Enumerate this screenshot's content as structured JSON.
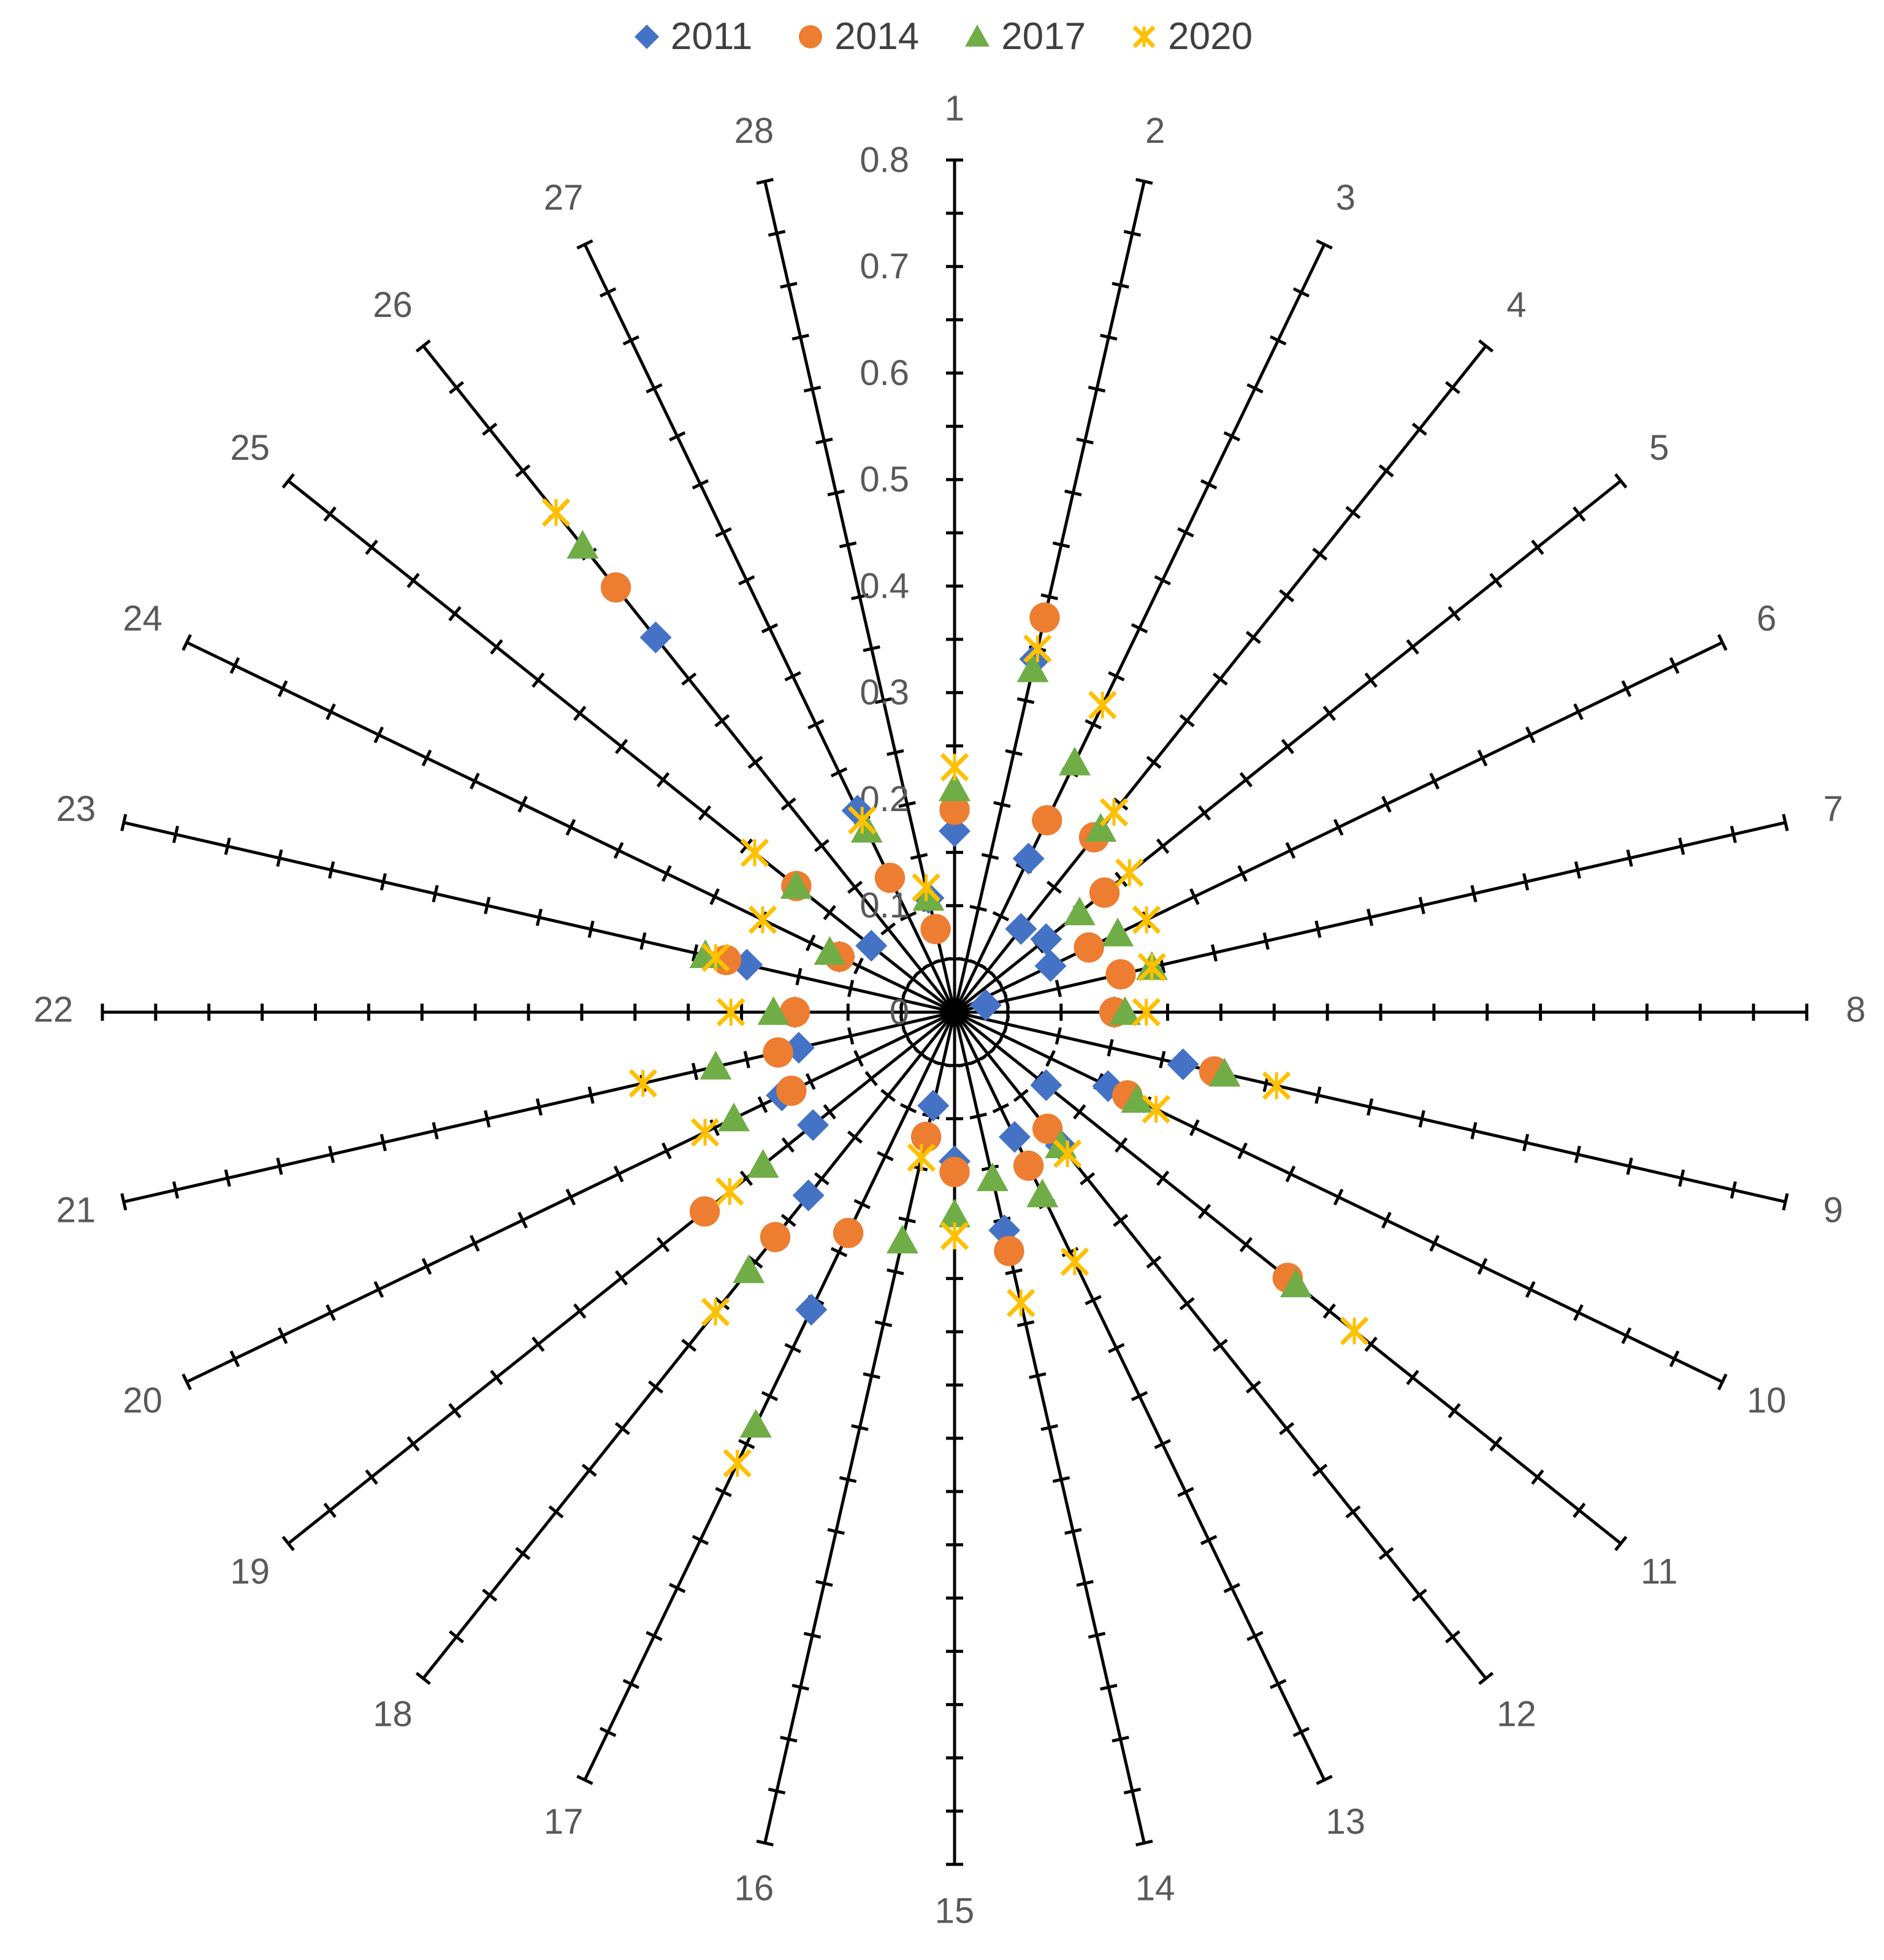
{
  "chart_data": {
    "type": "radar",
    "style": "markers-only",
    "categories": [
      "1",
      "2",
      "3",
      "4",
      "5",
      "6",
      "7",
      "8",
      "9",
      "10",
      "11",
      "12",
      "13",
      "14",
      "15",
      "16",
      "17",
      "18",
      "19",
      "20",
      "21",
      "22",
      "23",
      "24",
      "25",
      "26",
      "27",
      "28"
    ],
    "scale": {
      "min": 0,
      "max": 0.8,
      "step": 0.1,
      "labels": [
        "0",
        "0.1",
        "0.2",
        "0.3",
        "0.4",
        "0.5",
        "0.6",
        "0.7",
        "0.8"
      ],
      "minor_ticks_per_step": 1
    },
    "legend": {
      "position": "top"
    },
    "series": [
      {
        "name": "2011",
        "color": "#4472C4",
        "marker": "diamond",
        "values": [
          0.17,
          0.34,
          0.16,
          0.1,
          0.11,
          0.1,
          0.03,
          0.15,
          0.22,
          0.16,
          0.11,
          0.16,
          0.13,
          0.21,
          0.14,
          0.09,
          0.31,
          0.22,
          0.17,
          0.18,
          0.15,
          0.15,
          0.2,
          0.12,
          0.1,
          0.45,
          0.21,
          0.11
        ]
      },
      {
        "name": "2014",
        "color": "#ED7D31",
        "marker": "circle",
        "values": [
          0.19,
          0.38,
          0.2,
          0.21,
          0.18,
          0.14,
          0.16,
          0.15,
          0.25,
          0.18,
          0.4,
          0.14,
          0.16,
          0.23,
          0.15,
          0.12,
          0.23,
          0.27,
          0.3,
          0.17,
          0.17,
          0.15,
          0.22,
          0.12,
          0.19,
          0.51,
          0.14,
          0.08
        ]
      },
      {
        "name": "2017",
        "color": "#70AD47",
        "marker": "triangle",
        "values": [
          0.21,
          0.33,
          0.26,
          0.22,
          0.15,
          0.17,
          0.19,
          0.16,
          0.26,
          0.19,
          0.41,
          0.16,
          0.19,
          0.16,
          0.19,
          0.22,
          0.43,
          0.31,
          0.23,
          0.23,
          0.23,
          0.17,
          0.24,
          0.13,
          0.19,
          0.56,
          0.19,
          0.11
        ]
      },
      {
        "name": "2020",
        "color": "#FFC000",
        "marker": "x",
        "values": [
          0.23,
          0.35,
          0.32,
          0.24,
          0.21,
          0.2,
          0.19,
          0.18,
          0.31,
          0.21,
          0.48,
          0.17,
          0.26,
          0.28,
          0.21,
          0.14,
          0.47,
          0.36,
          0.27,
          0.26,
          0.3,
          0.21,
          0.23,
          0.2,
          0.24,
          0.6,
          0.2,
          0.12
        ]
      }
    ]
  }
}
